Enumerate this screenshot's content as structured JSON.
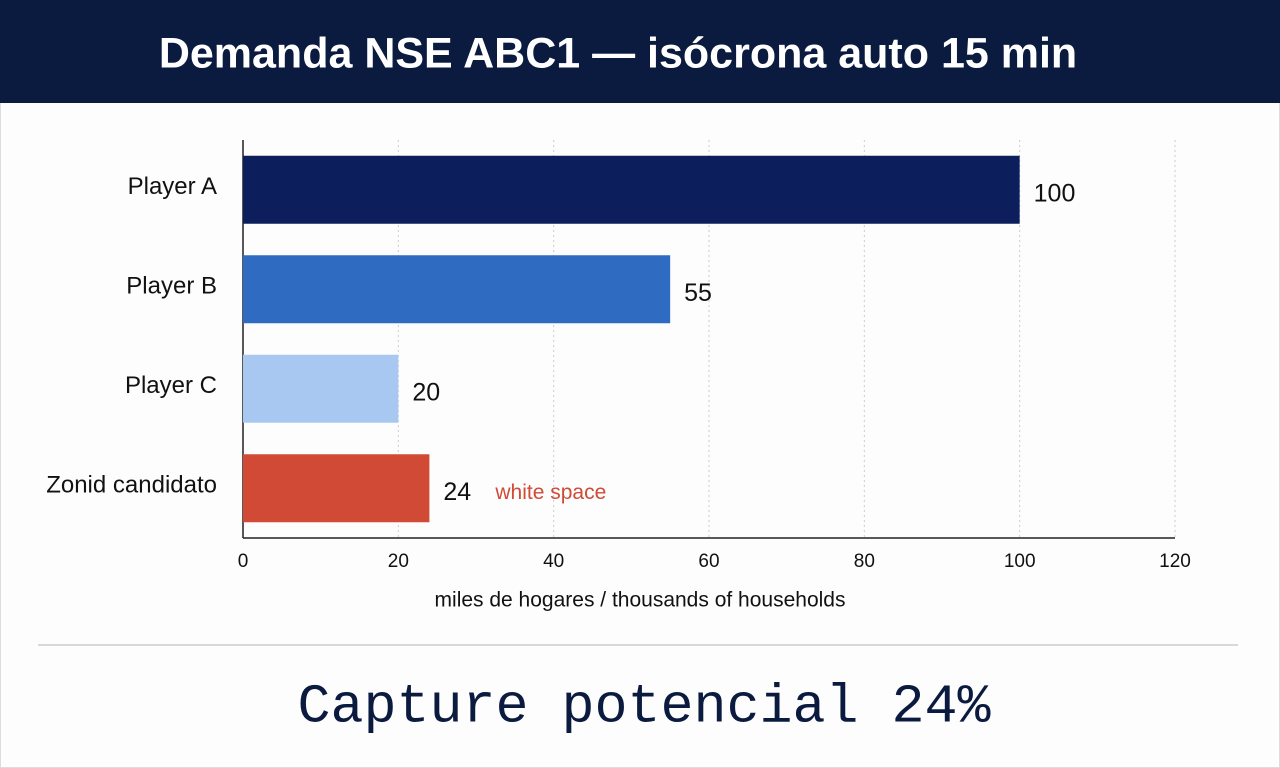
{
  "chart_data": {
    "type": "bar",
    "orientation": "horizontal",
    "title": "Demanda NSE ABC1 — isócrona auto 15 min",
    "categories": [
      "Player A",
      "Player B",
      "Player C",
      "Zonid candidato"
    ],
    "values": [
      100,
      55,
      20,
      24
    ],
    "colors": [
      "#0c1f5c",
      "#2f6bc1",
      "#a8c7f1",
      "#d14a35"
    ],
    "xlim": [
      0,
      120
    ],
    "xticks": [
      0,
      20,
      40,
      60,
      80,
      100,
      120
    ],
    "xlabel": "miles de hogares / thousands of households",
    "grid": true,
    "annotations": [
      {
        "text": "white space",
        "category": "Zonid candidato",
        "color": "#d14a35"
      }
    ]
  },
  "footer": "Capture potencial 24%"
}
